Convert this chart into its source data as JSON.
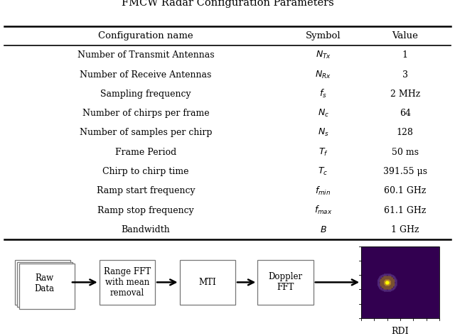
{
  "title": "FMCW Radar Configuration Parameters",
  "columns": [
    "Configuration name",
    "Symbol",
    "Value"
  ],
  "rows": [
    [
      "Number of Transmit Antennas",
      "$N_{Tx}$",
      "1"
    ],
    [
      "Number of Receive Antennas",
      "$N_{Rx}$",
      "3"
    ],
    [
      "Sampling frequency",
      "$f_s$",
      "2 MHz"
    ],
    [
      "Number of chirps per frame",
      "$N_c$",
      "64"
    ],
    [
      "Number of samples per chirp",
      "$N_s$",
      "128"
    ],
    [
      "Frame Period",
      "$T_f$",
      "50 ms"
    ],
    [
      "Chirp to chirp time",
      "$T_c$",
      "391.55 μs"
    ],
    [
      "Ramp start frequency",
      "$f_{min}$",
      "60.1 GHz"
    ],
    [
      "Ramp stop frequency",
      "$f_{max}$",
      "61.1 GHz"
    ],
    [
      "Bandwidth",
      "$B$",
      "1 GHz"
    ]
  ],
  "flow_boxes": [
    "Raw\nData",
    "Range FFT\nwith mean\nremoval",
    "MTI",
    "Doppler\nFFT"
  ],
  "flow_label": "RDI",
  "bg_color": "#ffffff",
  "table_font_size": 9.0,
  "title_font_size": 10.5,
  "rdi_purple": [
    50,
    0,
    80
  ]
}
